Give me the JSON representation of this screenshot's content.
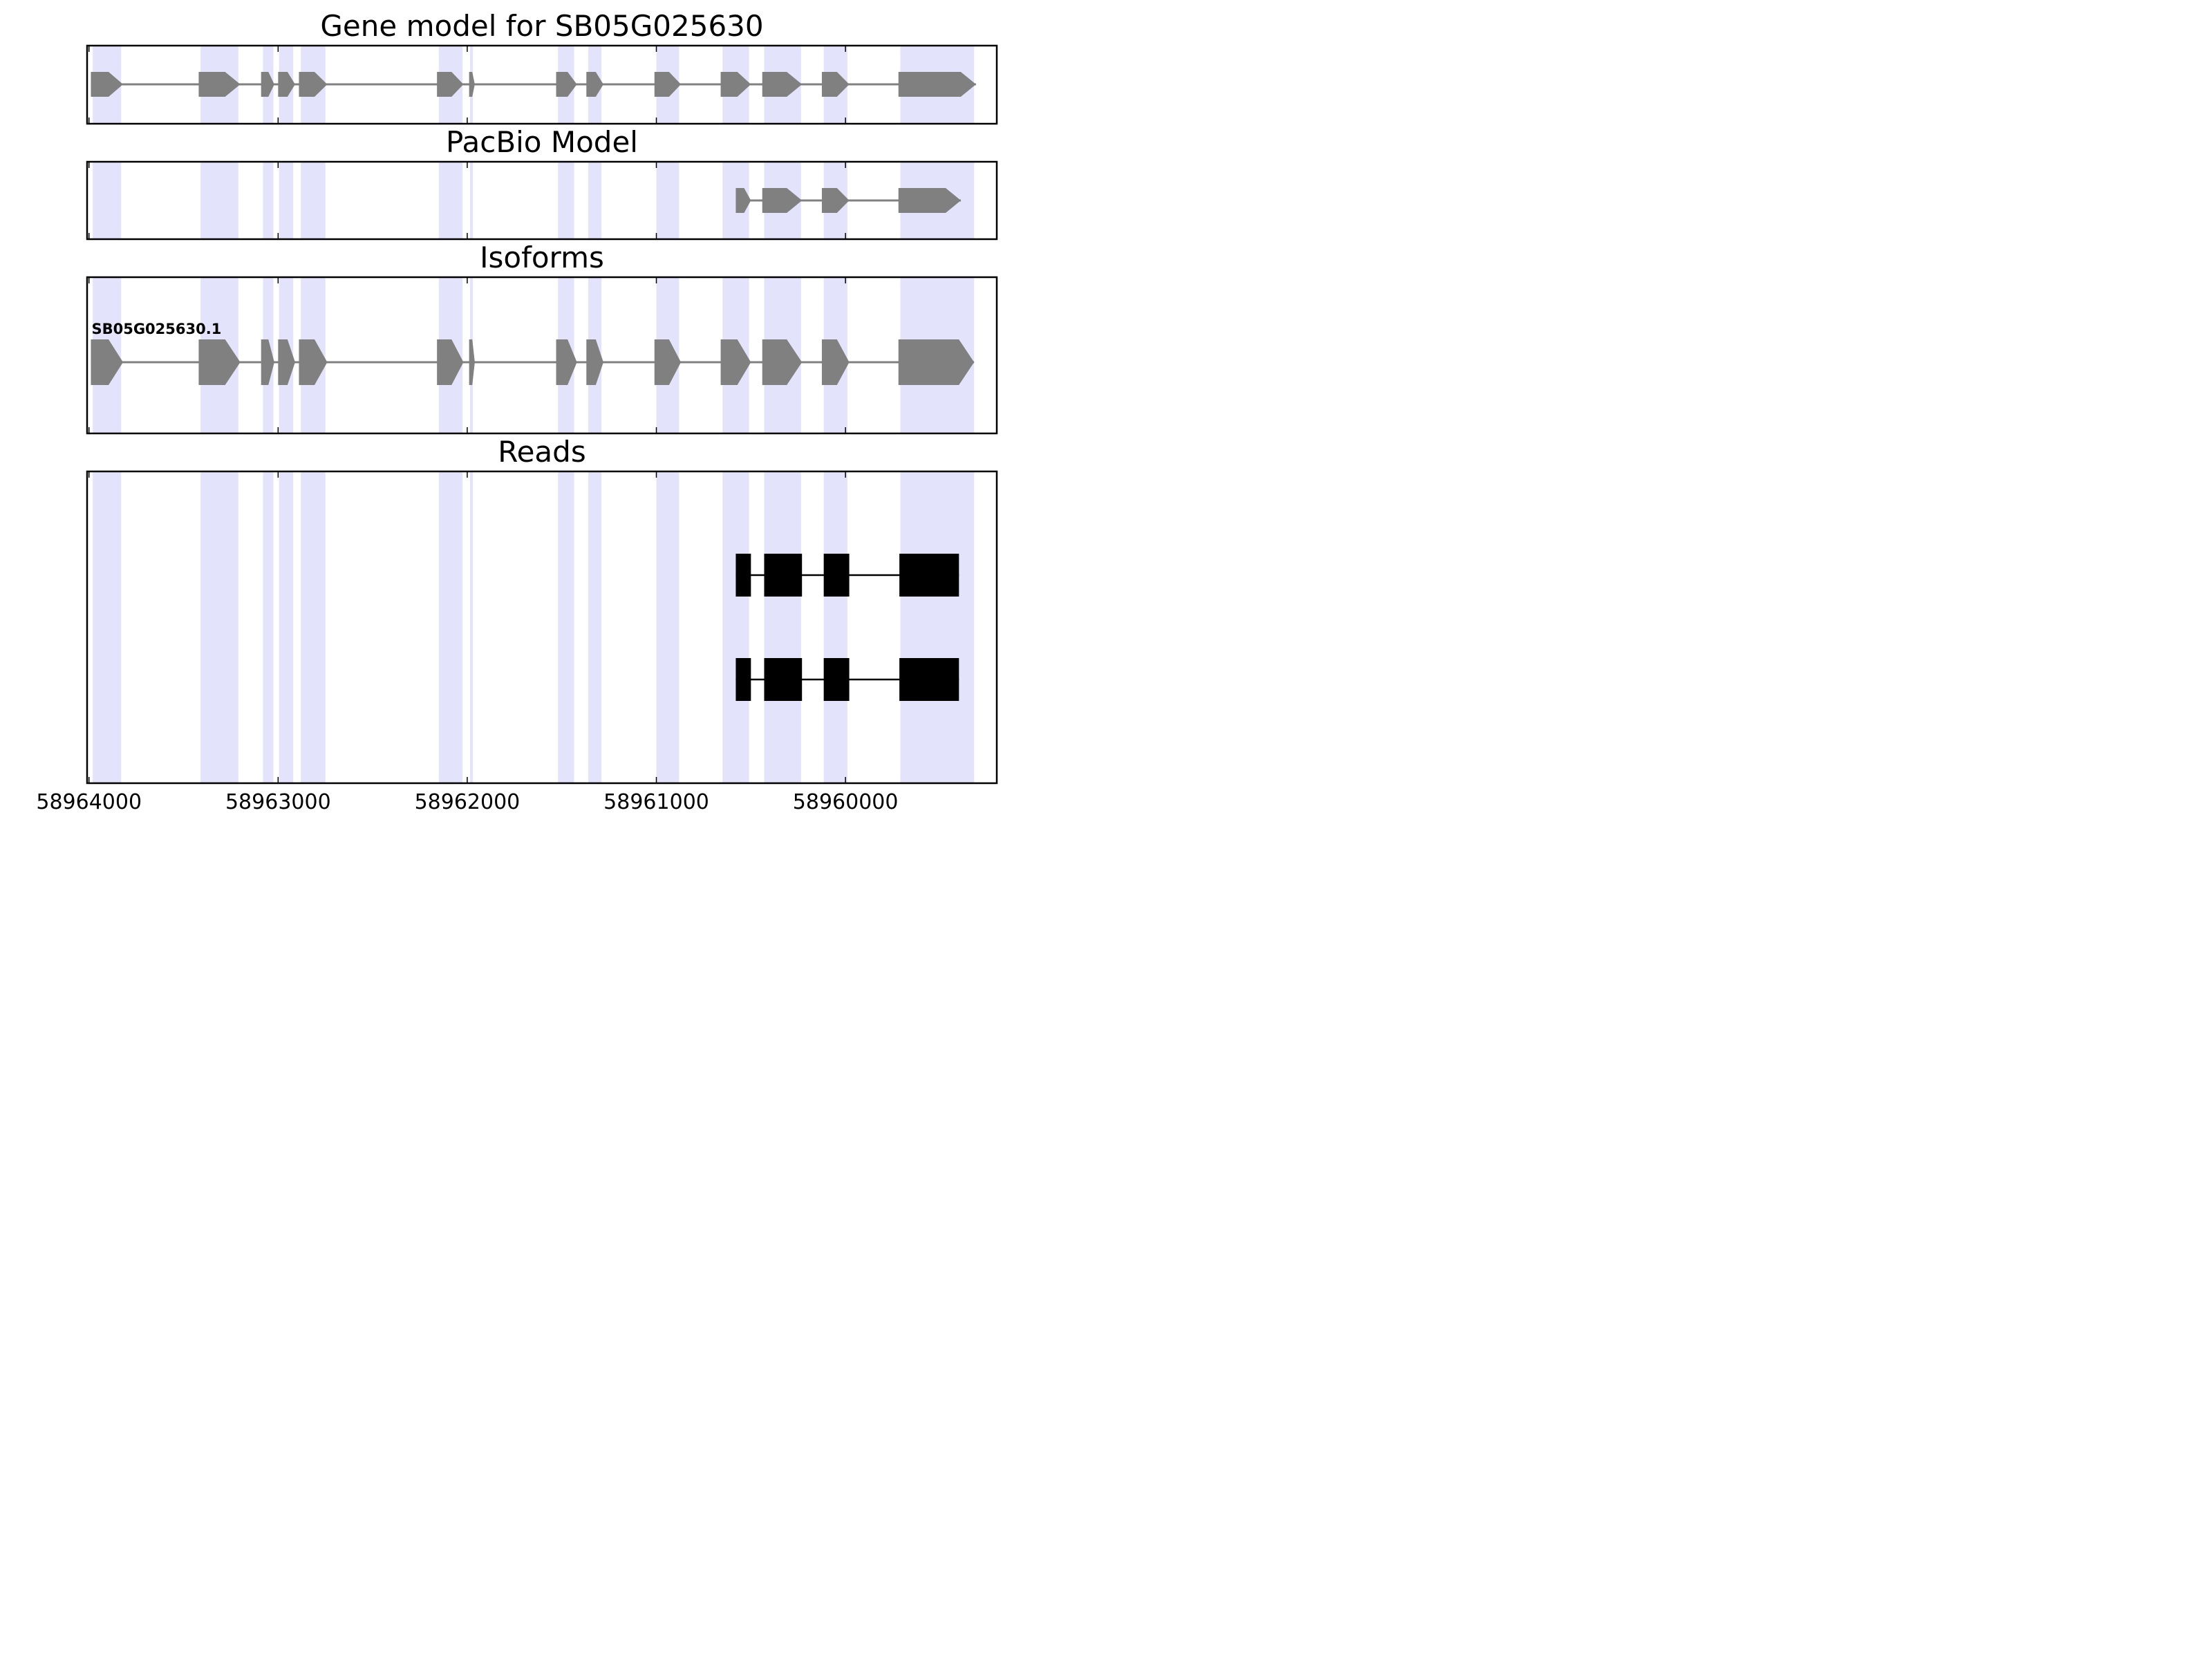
{
  "chart_data": {
    "type": "gene-track",
    "x_direction": "reversed",
    "xlim": [
      58964010,
      58959200
    ],
    "x_ticks": [
      58964000,
      58963000,
      58962000,
      58961000,
      58960000
    ],
    "x_tick_labels": [
      "58964000",
      "58963000",
      "58962000",
      "58961000",
      "58960000"
    ],
    "highlight_color": "#e3e3fb",
    "feature_color": "#808080",
    "read_color": "#000000",
    "exon_regions": [
      [
        58963980,
        58963830
      ],
      [
        58963410,
        58963210
      ],
      [
        58963080,
        58963025
      ],
      [
        58962995,
        58962920
      ],
      [
        58962880,
        58962750
      ],
      [
        58962150,
        58962025
      ],
      [
        58961985,
        58961970
      ],
      [
        58961520,
        58961435
      ],
      [
        58961360,
        58961290
      ],
      [
        58961000,
        58960880
      ],
      [
        58960650,
        58960510
      ],
      [
        58960430,
        58960235
      ],
      [
        58960115,
        58959990
      ],
      [
        58959710,
        58959320
      ]
    ],
    "panels": [
      {
        "title": "Gene model for SB05G025630",
        "features": [
          {
            "exons": [
              [
                58963990,
                58963820
              ],
              [
                58963420,
                58963200
              ],
              [
                58963090,
                58963020
              ],
              [
                58963000,
                58962910
              ],
              [
                58962890,
                58962740
              ],
              [
                58962160,
                58962020
              ],
              [
                58961990,
                58961960
              ],
              [
                58961530,
                58961420
              ],
              [
                58961370,
                58961280
              ],
              [
                58961010,
                58960870
              ],
              [
                58960660,
                58960500
              ],
              [
                58960440,
                58960230
              ],
              [
                58960125,
                58959980
              ],
              [
                58959720,
                58959310
              ]
            ]
          }
        ]
      },
      {
        "title": "PacBio Model",
        "features": [
          {
            "exons": [
              [
                58960580,
                58960500
              ],
              [
                58960440,
                58960230
              ],
              [
                58960125,
                58959980
              ],
              [
                58959720,
                58959390
              ]
            ]
          }
        ]
      },
      {
        "title": "Isoforms",
        "features": [
          {
            "label": "SB05G025630.1",
            "exons": [
              [
                58963990,
                58963820
              ],
              [
                58963420,
                58963200
              ],
              [
                58963090,
                58963020
              ],
              [
                58963000,
                58962910
              ],
              [
                58962890,
                58962740
              ],
              [
                58962160,
                58962020
              ],
              [
                58961990,
                58961960
              ],
              [
                58961530,
                58961420
              ],
              [
                58961370,
                58961280
              ],
              [
                58961010,
                58960870
              ],
              [
                58960660,
                58960500
              ],
              [
                58960440,
                58960230
              ],
              [
                58960125,
                58959980
              ],
              [
                58959720,
                58959320
              ]
            ]
          }
        ]
      },
      {
        "title": "Reads",
        "reads": [
          {
            "exons": [
              [
                58960580,
                58960500
              ],
              [
                58960430,
                58960230
              ],
              [
                58960115,
                58959980
              ],
              [
                58959715,
                58959400
              ]
            ]
          },
          {
            "exons": [
              [
                58960580,
                58960500
              ],
              [
                58960430,
                58960230
              ],
              [
                58960115,
                58959980
              ],
              [
                58959715,
                58959400
              ]
            ]
          }
        ]
      }
    ]
  }
}
